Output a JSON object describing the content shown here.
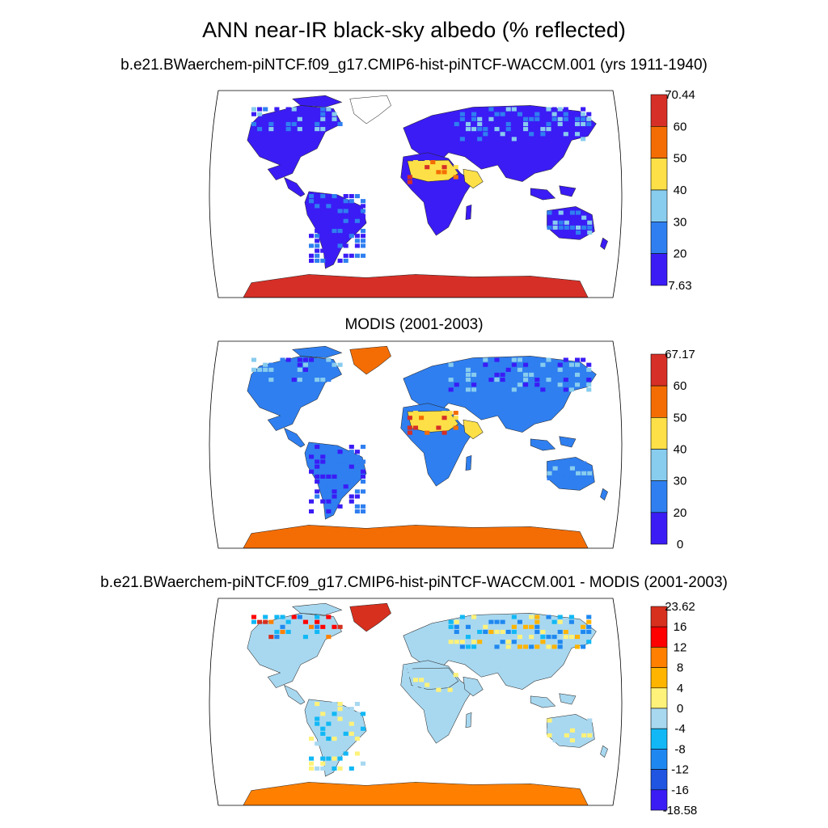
{
  "figure": {
    "title": "ANN near-IR black-sky albedo (% reflected)"
  },
  "panels": [
    {
      "id": "model",
      "subtitle": "b.e21.BWaerchem-piNTCF.f09_g17.CMIP6-hist-piNTCF-WACCM.001 (yrs 1911-1940)",
      "colorbar": {
        "labels": [
          "70.44",
          "60",
          "50",
          "40",
          "30",
          "20",
          "7.63"
        ],
        "colors": [
          "#d62f27",
          "#f46d04",
          "#fde047",
          "#88ccee",
          "#2f7ff0",
          "#3b1cf5"
        ]
      },
      "land_color": "#3b1cf5",
      "antarctica_color": "#d62f27",
      "greenland_color": "#ffffff"
    },
    {
      "id": "obs",
      "subtitle": "MODIS (2001-2003)",
      "colorbar": {
        "labels": [
          "67.17",
          "60",
          "50",
          "40",
          "30",
          "20",
          "0"
        ],
        "colors": [
          "#d62f27",
          "#f46d04",
          "#fde047",
          "#88ccee",
          "#2f7ff0",
          "#3b1cf5"
        ]
      },
      "land_color": "#2f7ff0",
      "antarctica_color": "#f46d04",
      "greenland_color": "#f46d04"
    },
    {
      "id": "diff",
      "subtitle": "b.e21.BWaerchem-piNTCF.f09_g17.CMIP6-hist-piNTCF-WACCM.001 - MODIS (2001-2003)",
      "colorbar": {
        "labels": [
          "23.62",
          "16",
          "12",
          "8",
          "4",
          "0",
          "-4",
          "-8",
          "-12",
          "-16",
          "-18.58"
        ],
        "colors": [
          "#d7301f",
          "#ff0000",
          "#ff8000",
          "#ffb400",
          "#fff27a",
          "#a8d8f0",
          "#12b8f5",
          "#1f88f0",
          "#1f55e0",
          "#3b1cf5"
        ]
      },
      "land_color": "#a8d8f0",
      "antarctica_color": "#ff8000",
      "greenland_color": "#d7301f"
    }
  ]
}
